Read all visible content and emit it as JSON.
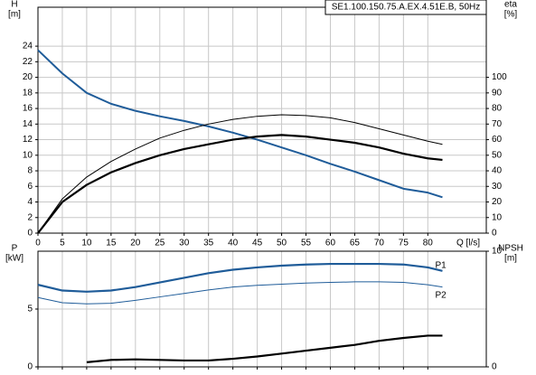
{
  "chart_data": [
    {
      "type": "line",
      "title": "SE1.100.150.75.A.EX.4.51E.B, 50Hz",
      "x_label": "Q [l/s]",
      "y_label": [
        "H",
        "[m]"
      ],
      "y2_label": [
        "eta",
        "[%]"
      ],
      "x": [
        0,
        5,
        10,
        15,
        20,
        25,
        30,
        35,
        40,
        45,
        50,
        55,
        60,
        65,
        70,
        75,
        80,
        83
      ],
      "xlim": [
        0,
        92
      ],
      "xticks": [
        0,
        5,
        10,
        15,
        20,
        25,
        30,
        35,
        40,
        45,
        50,
        55,
        60,
        65,
        70,
        75,
        80
      ],
      "ylim": [
        0,
        29
      ],
      "yticks": [
        0,
        2,
        4,
        6,
        8,
        10,
        12,
        14,
        16,
        18,
        20,
        22,
        24
      ],
      "y2lim": [
        0,
        145
      ],
      "y2ticks": [
        0,
        10,
        20,
        30,
        40,
        50,
        60,
        70,
        80,
        90,
        100
      ],
      "grid": true,
      "series": [
        {
          "color": "#1f5c99",
          "width": 2,
          "values": [
            23.5,
            20.5,
            18,
            16.6,
            15.7,
            15,
            14.4,
            13.7,
            12.9,
            12,
            11,
            10,
            8.9,
            7.9,
            6.8,
            5.7,
            5.2,
            4.6
          ]
        },
        {
          "color": "#000000",
          "width": 1,
          "axis": "y2",
          "values": [
            0,
            22,
            36,
            46,
            54,
            61,
            66,
            70,
            73,
            75,
            76,
            75.5,
            74,
            71,
            67,
            63,
            59,
            57
          ]
        },
        {
          "color": "#000000",
          "width": 2.2,
          "axis": "y2",
          "values": [
            0,
            20,
            31,
            39,
            45,
            50,
            54,
            57,
            60,
            62,
            63,
            62,
            60,
            58,
            55,
            51,
            48,
            47
          ]
        }
      ]
    },
    {
      "type": "line",
      "y_label": [
        "P",
        "[kW]"
      ],
      "y2_label": [
        "NPSH",
        "[m]"
      ],
      "x": [
        0,
        5,
        10,
        15,
        20,
        25,
        30,
        35,
        40,
        45,
        50,
        55,
        60,
        65,
        70,
        75,
        80,
        83
      ],
      "xlim": [
        0,
        92
      ],
      "xticks": [
        0,
        5,
        10,
        15,
        20,
        25,
        30,
        35,
        40,
        45,
        50,
        55,
        60,
        65,
        70,
        75,
        80
      ],
      "ylim": [
        0,
        10
      ],
      "yticks": [
        0,
        5
      ],
      "y2lim": [
        0,
        10
      ],
      "y2ticks": [
        0,
        10
      ],
      "grid": true,
      "series": [
        {
          "name": "P1",
          "color": "#1f5c99",
          "width": 2.2,
          "values": [
            7.1,
            6.6,
            6.5,
            6.6,
            6.9,
            7.3,
            7.7,
            8.1,
            8.4,
            8.6,
            8.75,
            8.85,
            8.9,
            8.9,
            8.9,
            8.85,
            8.6,
            8.3
          ]
        },
        {
          "name": "P2",
          "color": "#1f5c99",
          "width": 1,
          "values": [
            6.0,
            5.55,
            5.45,
            5.5,
            5.75,
            6.05,
            6.35,
            6.65,
            6.9,
            7.05,
            7.15,
            7.25,
            7.3,
            7.35,
            7.35,
            7.3,
            7.1,
            6.9
          ]
        },
        {
          "color": "#000000",
          "width": 2.2,
          "axis": "y2",
          "values": [
            null,
            null,
            0.4,
            0.6,
            0.65,
            0.6,
            0.55,
            0.55,
            0.7,
            0.9,
            1.15,
            1.4,
            1.65,
            1.9,
            2.25,
            2.5,
            2.7,
            2.7
          ]
        }
      ]
    }
  ]
}
